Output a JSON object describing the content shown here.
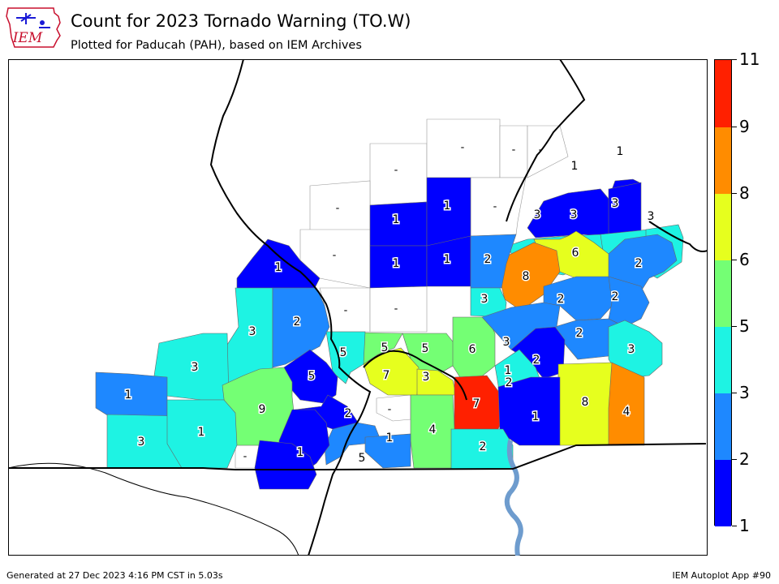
{
  "header": {
    "title": "Count for 2023 Tornado Warning (TO.W)",
    "subtitle": "Plotted for Paducah (PAH), based on IEM Archives",
    "logo_text": "IEM"
  },
  "footer": {
    "generated": "Generated at 27 Dec 2023 4:16 PM CST in 5.03s",
    "app": "IEM Autoplot App #90"
  },
  "colorbar": {
    "ticks": [
      "1",
      "2",
      "3",
      "5",
      "6",
      "8",
      "9",
      "11"
    ],
    "colors": [
      "#0000ff",
      "#1e88ff",
      "#1ef3e3",
      "#74ff74",
      "#e6ff1e",
      "#ff8c00",
      "#ff2000"
    ]
  },
  "map": {
    "zones": [
      {
        "value": "1"
      },
      {
        "value": "1"
      },
      {
        "value": "3"
      },
      {
        "value": "3"
      },
      {
        "value": "3"
      },
      {
        "value": "3"
      },
      {
        "value": "1"
      },
      {
        "value": "1"
      },
      {
        "value": "1"
      },
      {
        "value": "1"
      },
      {
        "value": "1"
      },
      {
        "value": "6"
      },
      {
        "value": "8"
      },
      {
        "value": "2"
      },
      {
        "value": "2"
      },
      {
        "value": "3"
      },
      {
        "value": "2"
      },
      {
        "value": "2"
      },
      {
        "value": "2"
      },
      {
        "value": "3"
      },
      {
        "value": "3"
      },
      {
        "value": "3"
      },
      {
        "value": "2"
      },
      {
        "value": "5"
      },
      {
        "value": "5"
      },
      {
        "value": "5"
      },
      {
        "value": "6"
      },
      {
        "value": "7"
      },
      {
        "value": "3"
      },
      {
        "value": "1"
      },
      {
        "value": "2"
      },
      {
        "value": "3"
      },
      {
        "value": "2"
      },
      {
        "value": "1"
      },
      {
        "value": "5"
      },
      {
        "value": "9"
      },
      {
        "value": "7"
      },
      {
        "value": "8"
      },
      {
        "value": "4"
      },
      {
        "value": "3"
      },
      {
        "value": "1"
      },
      {
        "value": "1"
      },
      {
        "value": "2"
      },
      {
        "value": "5"
      },
      {
        "value": "4"
      },
      {
        "value": "2"
      },
      {
        "value": "1"
      },
      {
        "value": "1"
      }
    ],
    "no_data_zones": [
      {
        "value": "-"
      },
      {
        "value": "-"
      },
      {
        "value": "-"
      },
      {
        "value": "-"
      },
      {
        "value": "-"
      },
      {
        "value": "-"
      },
      {
        "value": "-"
      },
      {
        "value": "-"
      },
      {
        "value": "-"
      },
      {
        "value": "-"
      },
      {
        "value": "-"
      }
    ]
  }
}
